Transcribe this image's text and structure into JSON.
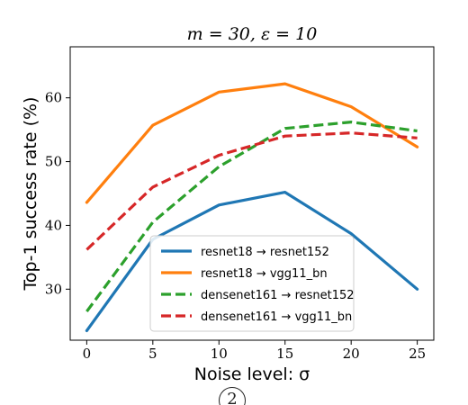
{
  "chart_data": {
    "type": "line",
    "title": "m = 30, ε = 10",
    "xlabel": "Noise level: σ",
    "ylabel": "Top-1 success rate (%)",
    "x": [
      0,
      5,
      10,
      15,
      20,
      25
    ],
    "x_ticks": [
      0,
      5,
      10,
      15,
      20,
      25
    ],
    "y_ticks": [
      30,
      40,
      50,
      60
    ],
    "xlim": [
      -1.25,
      26.25
    ],
    "ylim": [
      22,
      68
    ],
    "grid": false,
    "legend_position": "lower-center",
    "series": [
      {
        "name": "resnet18 → resnet152",
        "values": [
          23.5,
          37.8,
          43.2,
          45.2,
          38.7,
          30.0
        ],
        "color": "#1f77b4",
        "style": "solid"
      },
      {
        "name": "resnet18 → vgg11_bn",
        "values": [
          43.6,
          55.7,
          60.9,
          62.2,
          58.6,
          52.3
        ],
        "color": "#ff7f0e",
        "style": "solid"
      },
      {
        "name": "densenet161 → resnet152",
        "values": [
          26.5,
          40.5,
          49.2,
          55.2,
          56.2,
          54.8
        ],
        "color": "#2ca02c",
        "style": "dashed"
      },
      {
        "name": "densenet161 → vgg11_bn",
        "values": [
          36.2,
          46.0,
          51.0,
          54.0,
          54.5,
          53.7
        ],
        "color": "#d62728",
        "style": "dashed"
      }
    ]
  },
  "footer": {
    "mark": "2"
  }
}
